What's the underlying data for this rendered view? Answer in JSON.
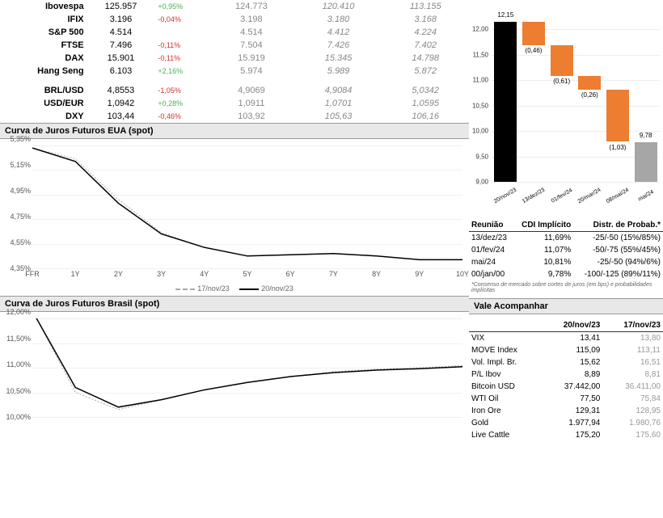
{
  "indices": {
    "rows": [
      {
        "name": "Ibovespa",
        "val": "125.957",
        "chg": "+0,95%",
        "cls": "green",
        "p1": "124.773",
        "p2": "120.410",
        "p3": "113.155"
      },
      {
        "name": "IFIX",
        "val": "3.196",
        "chg": "-0,04%",
        "cls": "red",
        "p1": "3.198",
        "p2": "3.180",
        "p3": "3.168"
      },
      {
        "name": "S&P 500",
        "val": "4.514",
        "chg": "",
        "cls": "",
        "p1": "4.514",
        "p2": "4.412",
        "p3": "4.224"
      },
      {
        "name": "FTSE",
        "val": "7.496",
        "chg": "-0,11%",
        "cls": "red",
        "p1": "7.504",
        "p2": "7.426",
        "p3": "7.402"
      },
      {
        "name": "DAX",
        "val": "15.901",
        "chg": "-0,11%",
        "cls": "red",
        "p1": "15.919",
        "p2": "15.345",
        "p3": "14.798"
      },
      {
        "name": "Hang Seng",
        "val": "6.103",
        "chg": "+2,16%",
        "cls": "green",
        "p1": "5.974",
        "p2": "5.989",
        "p3": "5.872"
      }
    ],
    "fx": [
      {
        "name": "BRL/USD",
        "val": "4,8553",
        "chg": "-1,05%",
        "cls": "red",
        "p1": "4,9069",
        "p2": "4,9084",
        "p3": "5,0342"
      },
      {
        "name": "USD/EUR",
        "val": "1,0942",
        "chg": "+0,28%",
        "cls": "green",
        "p1": "1,0911",
        "p2": "1,0701",
        "p3": "1,0595"
      },
      {
        "name": "DXY",
        "val": "103,44",
        "chg": "-0,46%",
        "cls": "red",
        "p1": "103,92",
        "p2": "105,63",
        "p3": "106,16"
      }
    ]
  },
  "us_curve": {
    "title": "Curva de Juros Futuros EUA (spot)",
    "y_ticks": [
      "5,35%",
      "5,15%",
      "4,95%",
      "4,75%",
      "4,55%",
      "4,35%"
    ],
    "ylim": [
      4.35,
      5.35
    ],
    "x_labels": [
      "FFR",
      "1Y",
      "2Y",
      "3Y",
      "4Y",
      "5Y",
      "6Y",
      "7Y",
      "8Y",
      "9Y",
      "10Y"
    ],
    "series_solid": [
      5.33,
      5.22,
      4.88,
      4.63,
      4.52,
      4.45,
      4.46,
      4.47,
      4.45,
      4.42,
      4.42
    ],
    "series_dash": [
      5.33,
      5.24,
      4.91,
      4.64,
      4.52,
      4.45,
      4.46,
      4.47,
      4.45,
      4.42,
      4.42
    ],
    "legend": {
      "a": "17/nov/23",
      "b": "20/nov/23"
    }
  },
  "br_curve": {
    "title": "Curva de Juros Futuros Brasil (spot)",
    "y_ticks": [
      "12,00%",
      "11,50%",
      "11,00%",
      "10,50%",
      "10,00%"
    ],
    "ylim": [
      10.0,
      12.0
    ],
    "x_count": 11,
    "series_solid": [
      12.15,
      10.6,
      10.2,
      10.35,
      10.55,
      10.7,
      10.82,
      10.9,
      10.95,
      10.98,
      11.02
    ],
    "series_dash": [
      12.16,
      10.5,
      10.15,
      10.35,
      10.55,
      10.7,
      10.82,
      10.92,
      10.97,
      11.0,
      11.04
    ]
  },
  "waterfall": {
    "ylim": [
      9.0,
      12.5
    ],
    "y_ticks": [
      "9,00",
      "9,50",
      "10,00",
      "10,50",
      "11,00",
      "11,50",
      "12,00"
    ],
    "y_vals": [
      9.0,
      9.5,
      10.0,
      10.5,
      11.0,
      11.5,
      12.0
    ],
    "x_labels": [
      "20/nov/23",
      "13/dez/23",
      "01/fev/24",
      "20/mar/24",
      "08/mai/24",
      "mai/24"
    ],
    "bars": [
      {
        "top": 12.15,
        "bottom": 9.0,
        "color": "#000000",
        "label": "12,15",
        "label_pos": "top"
      },
      {
        "top": 12.15,
        "bottom": 11.69,
        "color": "#ed7d31",
        "label": "(0,46)",
        "label_pos": "bottom"
      },
      {
        "top": 11.69,
        "bottom": 11.08,
        "color": "#ed7d31",
        "label": "(0,61)",
        "label_pos": "bottom"
      },
      {
        "top": 11.08,
        "bottom": 10.82,
        "color": "#ed7d31",
        "label": "(0,26)",
        "label_pos": "bottom"
      },
      {
        "top": 10.82,
        "bottom": 9.79,
        "color": "#ed7d31",
        "label": "(1,03)",
        "label_pos": "bottom"
      },
      {
        "top": 9.78,
        "bottom": 9.0,
        "color": "#a6a6a6",
        "label": "9,78",
        "label_pos": "top"
      }
    ]
  },
  "reuniao": {
    "headers": [
      "Reunião",
      "CDI Implícito",
      "Distr. de Probab.*"
    ],
    "rows": [
      [
        "13/dez/23",
        "11,69%",
        "-25/-50 (15%/85%)"
      ],
      [
        "01/fev/24",
        "11,07%",
        "-50/-75 (55%/45%)"
      ],
      [
        "mai/24",
        "10,81%",
        "-25/-50 (94%/6%)"
      ],
      [
        "00/jan/00",
        "9,78%",
        "-100/-125 (89%/11%)"
      ]
    ],
    "footnote": "*Consenso de mercado sobre cortes de juros (em bps) e probabilidades implícitas"
  },
  "vale": {
    "title": "Vale Acompanhar",
    "headers": [
      "",
      "20/nov/23",
      "17/nov/23"
    ],
    "rows": [
      [
        "VIX",
        "13,41",
        "13,80"
      ],
      [
        "MOVE Index",
        "115,09",
        "113,11"
      ],
      [
        "Vol. Impl. Br.",
        "15,62",
        "16,51"
      ],
      [
        "P/L Ibov",
        "8,89",
        "8,81"
      ],
      [
        "Bitcoin USD",
        "37.442,00",
        "36.411,00"
      ],
      [
        "WTI Oil",
        "77,50",
        "75,84"
      ],
      [
        "Iron Ore",
        "129,31",
        "128,95"
      ],
      [
        "Gold",
        "1.977,94",
        "1.980,76"
      ],
      [
        "Live Cattle",
        "175,20",
        "175,60"
      ]
    ]
  }
}
